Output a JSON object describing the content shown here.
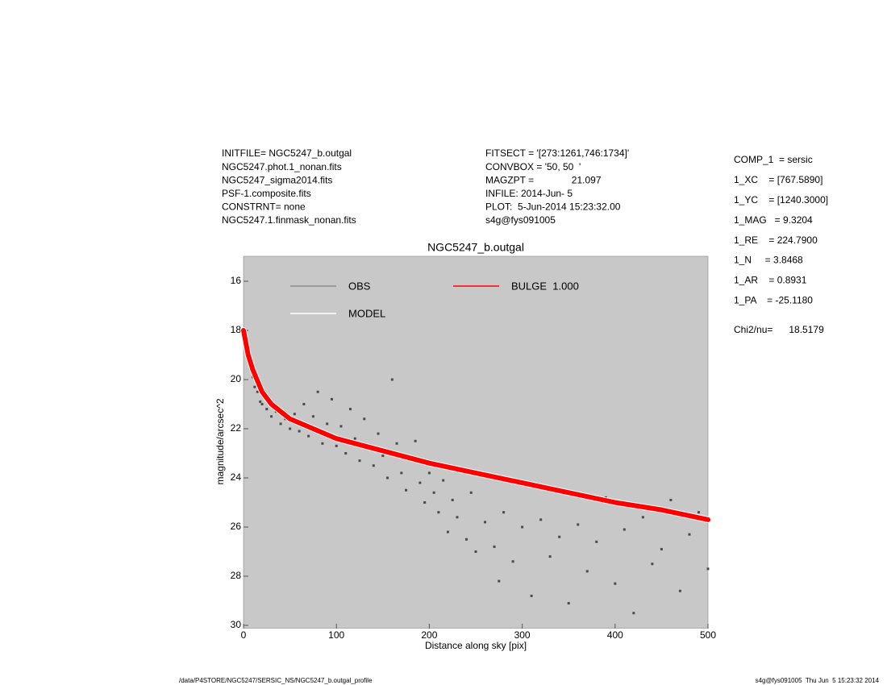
{
  "header": {
    "left": [
      "INITFILE= NGC5247_b.outgal",
      "NGC5247.phot.1_nonan.fits",
      "NGC5247_sigma2014.fits",
      "PSF-1.composite.fits",
      "CONSTRNT= none",
      "NGC5247.1.finmask_nonan.fits"
    ],
    "middle": [
      "FITSECT = '[273:1261,746:1734]'",
      "CONVBOX = '50, 50  '",
      "MAGZPT =              21.097",
      "INFILE: 2014-Jun- 5",
      "PLOT:  5-Jun-2014 15:23:32.00",
      "s4g@fys091005"
    ]
  },
  "parameters": [
    "COMP_1  = sersic",
    "1_XC    = [767.5890]",
    "1_YC    = [1240.3000]",
    "1_MAG   = 9.3204",
    "1_RE    = 224.7900",
    "1_N     = 3.8468",
    "1_AR    = 0.8931",
    "1_PA    = -25.1180"
  ],
  "chi2": "Chi2/nu=      18.5179",
  "footer": {
    "left": "/data/P4STORE/NGC5247/SERSIC_NS/NGC5247_b.outgal_profile",
    "right": "s4g@fys091005  Thu Jun  5 15:23:32 2014"
  },
  "chart_data": {
    "type": "scatter",
    "title": "NGC5247_b.outgal",
    "x_label": "Distance along sky [pix]",
    "y_label": "magnitude/arcsec^2",
    "xlim": [
      0,
      500
    ],
    "ylim": [
      30,
      15
    ],
    "xticks": [
      0,
      100,
      200,
      300,
      400,
      500
    ],
    "yticks": [
      16,
      18,
      20,
      22,
      24,
      26,
      28,
      30
    ],
    "background": "#c8c8c8",
    "series": [
      {
        "name": "OBS",
        "color": "#4a4a4a",
        "legend_color": "#8c8c8c",
        "style": "points",
        "x": [
          2,
          4,
          6,
          8,
          10,
          12,
          15,
          18,
          20,
          25,
          30,
          35,
          40,
          45,
          50,
          55,
          60,
          65,
          70,
          75,
          80,
          85,
          90,
          95,
          100,
          105,
          110,
          115,
          120,
          125,
          130,
          135,
          140,
          145,
          150,
          155,
          160,
          165,
          170,
          175,
          180,
          185,
          190,
          195,
          200,
          205,
          210,
          215,
          220,
          225,
          230,
          240,
          245,
          250,
          260,
          270,
          275,
          280,
          290,
          300,
          310,
          320,
          330,
          340,
          350,
          360,
          370,
          380,
          390,
          400,
          410,
          420,
          430,
          440,
          450,
          460,
          470,
          480,
          490,
          500
        ],
        "values": [
          18.1,
          18.6,
          19.2,
          19.6,
          19.9,
          20.3,
          20.5,
          20.9,
          21.0,
          21.2,
          21.5,
          21.3,
          21.8,
          21.6,
          22.0,
          21.4,
          22.1,
          21.0,
          22.3,
          21.5,
          20.5,
          22.6,
          21.8,
          20.8,
          22.7,
          21.9,
          23.0,
          21.2,
          22.4,
          23.3,
          21.6,
          22.8,
          23.5,
          22.2,
          23.1,
          24.0,
          20.0,
          22.6,
          23.8,
          24.5,
          23.2,
          22.5,
          24.2,
          25.0,
          23.8,
          24.6,
          25.4,
          24.1,
          26.2,
          24.9,
          25.6,
          26.5,
          24.6,
          27.0,
          25.8,
          26.8,
          28.2,
          25.4,
          27.4,
          26.0,
          28.8,
          25.7,
          27.2,
          26.4,
          29.1,
          25.9,
          27.8,
          26.6,
          24.8,
          28.3,
          26.1,
          29.5,
          25.6,
          27.5,
          26.9,
          24.9,
          28.6,
          26.3,
          25.4,
          27.7
        ]
      },
      {
        "name": "MODEL",
        "color": "#ffffff",
        "style": "line",
        "x": [
          0,
          5,
          10,
          20,
          30,
          50,
          75,
          100,
          150,
          200,
          250,
          300,
          350,
          400,
          450,
          500
        ],
        "values": [
          18.0,
          19.0,
          19.6,
          20.5,
          21.0,
          21.6,
          22.0,
          22.4,
          22.9,
          23.4,
          23.8,
          24.2,
          24.6,
          25.0,
          25.3,
          25.7
        ]
      },
      {
        "name": "BULGE  1.000",
        "color": "#ff0000",
        "style": "line",
        "x": [
          0,
          5,
          10,
          20,
          30,
          50,
          75,
          100,
          150,
          200,
          250,
          300,
          350,
          400,
          450,
          500
        ],
        "values": [
          18.0,
          19.0,
          19.6,
          20.5,
          21.0,
          21.6,
          22.0,
          22.4,
          22.9,
          23.4,
          23.8,
          24.2,
          24.6,
          25.0,
          25.3,
          25.7
        ]
      }
    ]
  }
}
